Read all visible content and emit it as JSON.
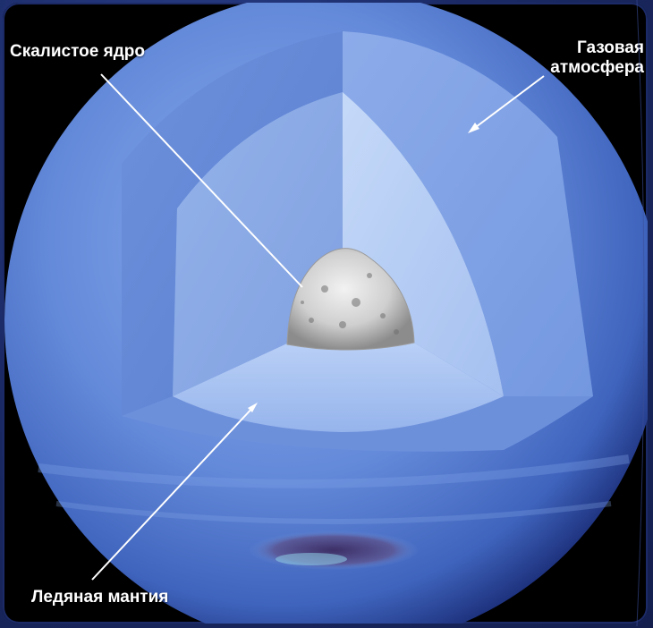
{
  "labels": {
    "core": "Скалистое ядро",
    "atmosphere_line1": "Газовая",
    "atmosphere_line2": "атмосфера",
    "mantle": "Ледяная мантия"
  },
  "colors": {
    "background": "#000000",
    "planet_outer": "#5f86d8",
    "atmosphere_cut": "#7ea2e8",
    "mantle": "#a9c4f2",
    "core": "#d9d9d9",
    "storm": "#4b3f7a"
  }
}
